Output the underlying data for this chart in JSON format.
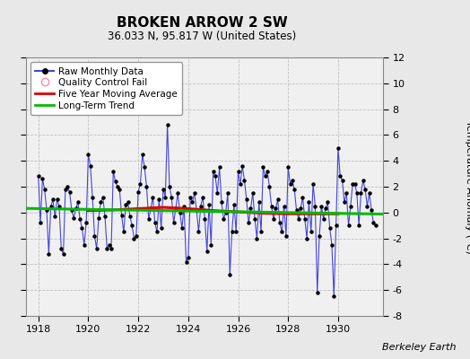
{
  "title": "BROKEN ARROW 2 SW",
  "subtitle": "36.033 N, 95.817 W (United States)",
  "ylabel": "Temperature Anomaly (°C)",
  "credit": "Berkeley Earth",
  "ylim": [
    -8,
    12
  ],
  "yticks": [
    -8,
    -6,
    -4,
    -2,
    0,
    2,
    4,
    6,
    8,
    10,
    12
  ],
  "xlim": [
    1917.5,
    1931.8
  ],
  "xticks": [
    1918,
    1920,
    1922,
    1924,
    1926,
    1928,
    1930
  ],
  "fig_bg": "#e8e8e8",
  "plot_bg": "#f0f0f0",
  "raw_color": "#4444dd",
  "raw_marker_color": "#000000",
  "moving_avg_color": "#dd0000",
  "trend_color": "#00bb00",
  "qc_fail_color": "#ff88aa",
  "legend_labels": [
    "Raw Monthly Data",
    "Quality Control Fail",
    "Five Year Moving Average",
    "Long-Term Trend"
  ],
  "raw_x": [
    1918.0,
    1918.083,
    1918.167,
    1918.25,
    1918.333,
    1918.417,
    1918.5,
    1918.583,
    1918.667,
    1918.75,
    1918.833,
    1918.917,
    1919.0,
    1919.083,
    1919.167,
    1919.25,
    1919.333,
    1919.417,
    1919.5,
    1919.583,
    1919.667,
    1919.75,
    1919.833,
    1919.917,
    1920.0,
    1920.083,
    1920.167,
    1920.25,
    1920.333,
    1920.417,
    1920.5,
    1920.583,
    1920.667,
    1920.75,
    1920.833,
    1920.917,
    1921.0,
    1921.083,
    1921.167,
    1921.25,
    1921.333,
    1921.417,
    1921.5,
    1921.583,
    1921.667,
    1921.75,
    1921.833,
    1921.917,
    1922.0,
    1922.083,
    1922.167,
    1922.25,
    1922.333,
    1922.417,
    1922.5,
    1922.583,
    1922.667,
    1922.75,
    1922.833,
    1922.917,
    1923.0,
    1923.083,
    1923.167,
    1923.25,
    1923.333,
    1923.417,
    1923.5,
    1923.583,
    1923.667,
    1923.75,
    1923.833,
    1923.917,
    1924.0,
    1924.083,
    1924.167,
    1924.25,
    1924.333,
    1924.417,
    1924.5,
    1924.583,
    1924.667,
    1924.75,
    1924.833,
    1924.917,
    1925.0,
    1925.083,
    1925.167,
    1925.25,
    1925.333,
    1925.417,
    1925.5,
    1925.583,
    1925.667,
    1925.75,
    1925.833,
    1925.917,
    1926.0,
    1926.083,
    1926.167,
    1926.25,
    1926.333,
    1926.417,
    1926.5,
    1926.583,
    1926.667,
    1926.75,
    1926.833,
    1926.917,
    1927.0,
    1927.083,
    1927.167,
    1927.25,
    1927.333,
    1927.417,
    1927.5,
    1927.583,
    1927.667,
    1927.75,
    1927.833,
    1927.917,
    1928.0,
    1928.083,
    1928.167,
    1928.25,
    1928.333,
    1928.417,
    1928.5,
    1928.583,
    1928.667,
    1928.75,
    1928.833,
    1928.917,
    1929.0,
    1929.083,
    1929.167,
    1929.25,
    1929.333,
    1929.417,
    1929.5,
    1929.583,
    1929.667,
    1929.75,
    1929.833,
    1929.917,
    1930.0,
    1930.083,
    1930.167,
    1930.25,
    1930.333,
    1930.417,
    1930.5,
    1930.583,
    1930.667,
    1930.75,
    1930.833,
    1930.917,
    1931.0,
    1931.083,
    1931.167,
    1931.25,
    1931.333,
    1931.417,
    1931.5
  ],
  "raw_y": [
    2.8,
    -0.8,
    2.6,
    1.8,
    0.2,
    -3.2,
    0.5,
    1.0,
    -0.3,
    1.0,
    0.5,
    -2.8,
    -3.2,
    1.8,
    2.0,
    1.6,
    0.2,
    -0.4,
    0.3,
    0.8,
    -0.5,
    -1.2,
    -2.5,
    -0.8,
    4.5,
    3.6,
    1.2,
    -1.8,
    -2.8,
    -0.4,
    0.8,
    1.2,
    -0.3,
    -2.8,
    -2.5,
    -2.8,
    3.2,
    2.4,
    2.0,
    1.8,
    -0.2,
    -1.5,
    0.6,
    0.8,
    -0.3,
    -1.0,
    -2.0,
    -1.8,
    1.6,
    2.2,
    4.5,
    3.5,
    2.0,
    -0.5,
    0.3,
    1.2,
    -0.8,
    -1.5,
    1.0,
    -1.2,
    1.8,
    1.2,
    6.8,
    2.0,
    1.2,
    -0.8,
    0.3,
    1.5,
    0.0,
    -1.2,
    0.5,
    -3.8,
    -3.5,
    1.2,
    0.8,
    1.5,
    0.2,
    -1.5,
    0.5,
    1.2,
    -0.5,
    -3.0,
    0.6,
    -2.5,
    3.2,
    2.8,
    1.5,
    3.5,
    0.8,
    -0.5,
    0.0,
    1.5,
    -4.8,
    -1.5,
    0.6,
    -1.5,
    3.2,
    2.2,
    3.6,
    2.5,
    1.0,
    -0.8,
    0.3,
    1.5,
    -0.5,
    -2.0,
    0.8,
    -1.5,
    3.5,
    2.8,
    3.2,
    2.0,
    0.5,
    -0.5,
    0.3,
    1.0,
    -0.8,
    -1.5,
    0.5,
    -1.8,
    3.5,
    2.2,
    2.5,
    1.8,
    0.2,
    -0.5,
    0.3,
    1.2,
    -0.5,
    -2.0,
    0.8,
    -1.5,
    2.2,
    0.5,
    -6.2,
    -1.8,
    0.5,
    -0.5,
    0.3,
    0.8,
    -1.2,
    -2.5,
    -6.5,
    -1.0,
    5.0,
    2.8,
    2.5,
    0.8,
    1.5,
    -1.0,
    0.5,
    2.2,
    2.2,
    1.5,
    -1.0,
    1.5,
    2.5,
    1.8,
    0.5,
    1.5,
    0.2,
    -0.8,
    -1.0
  ],
  "moving_avg_x": [
    1920.0,
    1921.0,
    1922.0,
    1923.0,
    1924.0,
    1925.0,
    1926.0,
    1927.0,
    1928.0,
    1929.0,
    1930.0
  ],
  "moving_avg_y": [
    0.15,
    0.2,
    0.3,
    0.4,
    0.3,
    0.15,
    0.05,
    -0.05,
    -0.1,
    -0.1,
    -0.1
  ],
  "trend_x": [
    1917.5,
    1931.8
  ],
  "trend_y": [
    0.32,
    -0.12
  ]
}
